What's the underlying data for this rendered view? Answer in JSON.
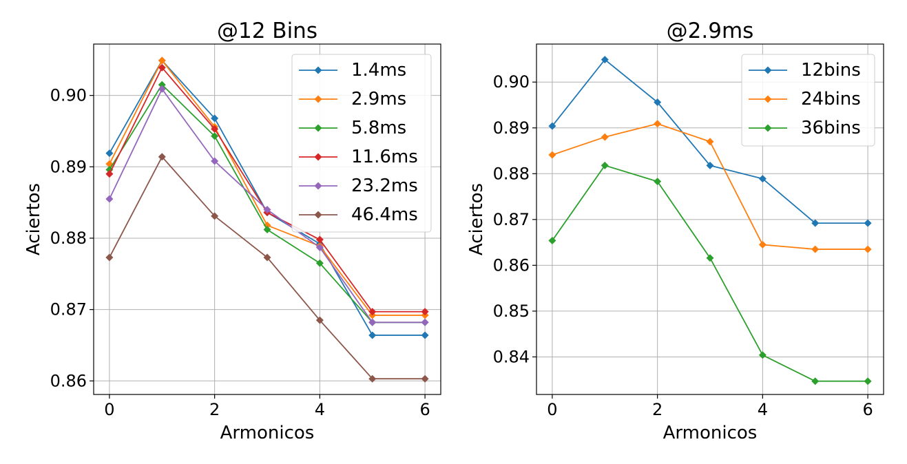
{
  "chart_data": [
    {
      "type": "line",
      "title": "@12 Bins",
      "xlabel": "Armonicos",
      "ylabel": "Aciertos",
      "xlim": [
        -0.3,
        6.3
      ],
      "ylim": [
        0.8581,
        0.9072
      ],
      "x_ticks": [
        0,
        2,
        4,
        6
      ],
      "x_tick_labels": [
        "0",
        "2",
        "4",
        "6"
      ],
      "y_ticks": [
        0.86,
        0.87,
        0.88,
        0.89,
        0.9
      ],
      "y_tick_labels": [
        "0.86",
        "0.87",
        "0.88",
        "0.89",
        "0.90"
      ],
      "grid": true,
      "legend_position": "top-right",
      "x": [
        0,
        1,
        2,
        3,
        4,
        5,
        6
      ],
      "series": [
        {
          "name": "1.4ms",
          "color": "#1f77b4",
          "values": [
            0.8919,
            0.9049,
            0.8968,
            0.8836,
            0.8792,
            0.8664,
            0.8664
          ]
        },
        {
          "name": "2.9ms",
          "color": "#ff7f0e",
          "values": [
            0.8904,
            0.9049,
            0.8956,
            0.8818,
            0.8789,
            0.8692,
            0.8692
          ]
        },
        {
          "name": "5.8ms",
          "color": "#2ca02c",
          "values": [
            0.8896,
            0.9015,
            0.8943,
            0.8812,
            0.8765,
            0.8682,
            0.8682
          ]
        },
        {
          "name": "11.6ms",
          "color": "#d62728",
          "values": [
            0.889,
            0.9039,
            0.8953,
            0.8836,
            0.8798,
            0.8697,
            0.8697
          ]
        },
        {
          "name": "23.2ms",
          "color": "#9467bd",
          "values": [
            0.8855,
            0.9009,
            0.8908,
            0.884,
            0.8787,
            0.8682,
            0.8682
          ]
        },
        {
          "name": "46.4ms",
          "color": "#8c564b",
          "values": [
            0.8773,
            0.8914,
            0.8831,
            0.8773,
            0.8685,
            0.8603,
            0.8603
          ]
        }
      ]
    },
    {
      "type": "line",
      "title": "@2.9ms",
      "xlabel": "Armonicos",
      "ylabel": "Aciertos",
      "xlim": [
        -0.3,
        6.3
      ],
      "ylim": [
        0.8318,
        0.9083
      ],
      "x_ticks": [
        0,
        2,
        4,
        6
      ],
      "x_tick_labels": [
        "0",
        "2",
        "4",
        "6"
      ],
      "y_ticks": [
        0.84,
        0.85,
        0.86,
        0.87,
        0.88,
        0.89,
        0.9
      ],
      "y_tick_labels": [
        "0.84",
        "0.85",
        "0.86",
        "0.87",
        "0.88",
        "0.89",
        "0.90"
      ],
      "grid": true,
      "legend_position": "top-right",
      "x": [
        0,
        1,
        2,
        3,
        4,
        5,
        6
      ],
      "series": [
        {
          "name": "12bins",
          "color": "#1f77b4",
          "values": [
            0.8904,
            0.9049,
            0.8956,
            0.8818,
            0.8789,
            0.8692,
            0.8692
          ]
        },
        {
          "name": "24bins",
          "color": "#ff7f0e",
          "values": [
            0.8841,
            0.888,
            0.8909,
            0.887,
            0.8645,
            0.8635,
            0.8635
          ]
        },
        {
          "name": "36bins",
          "color": "#2ca02c",
          "values": [
            0.8654,
            0.8818,
            0.8783,
            0.8616,
            0.8404,
            0.8347,
            0.8347
          ]
        }
      ]
    }
  ]
}
